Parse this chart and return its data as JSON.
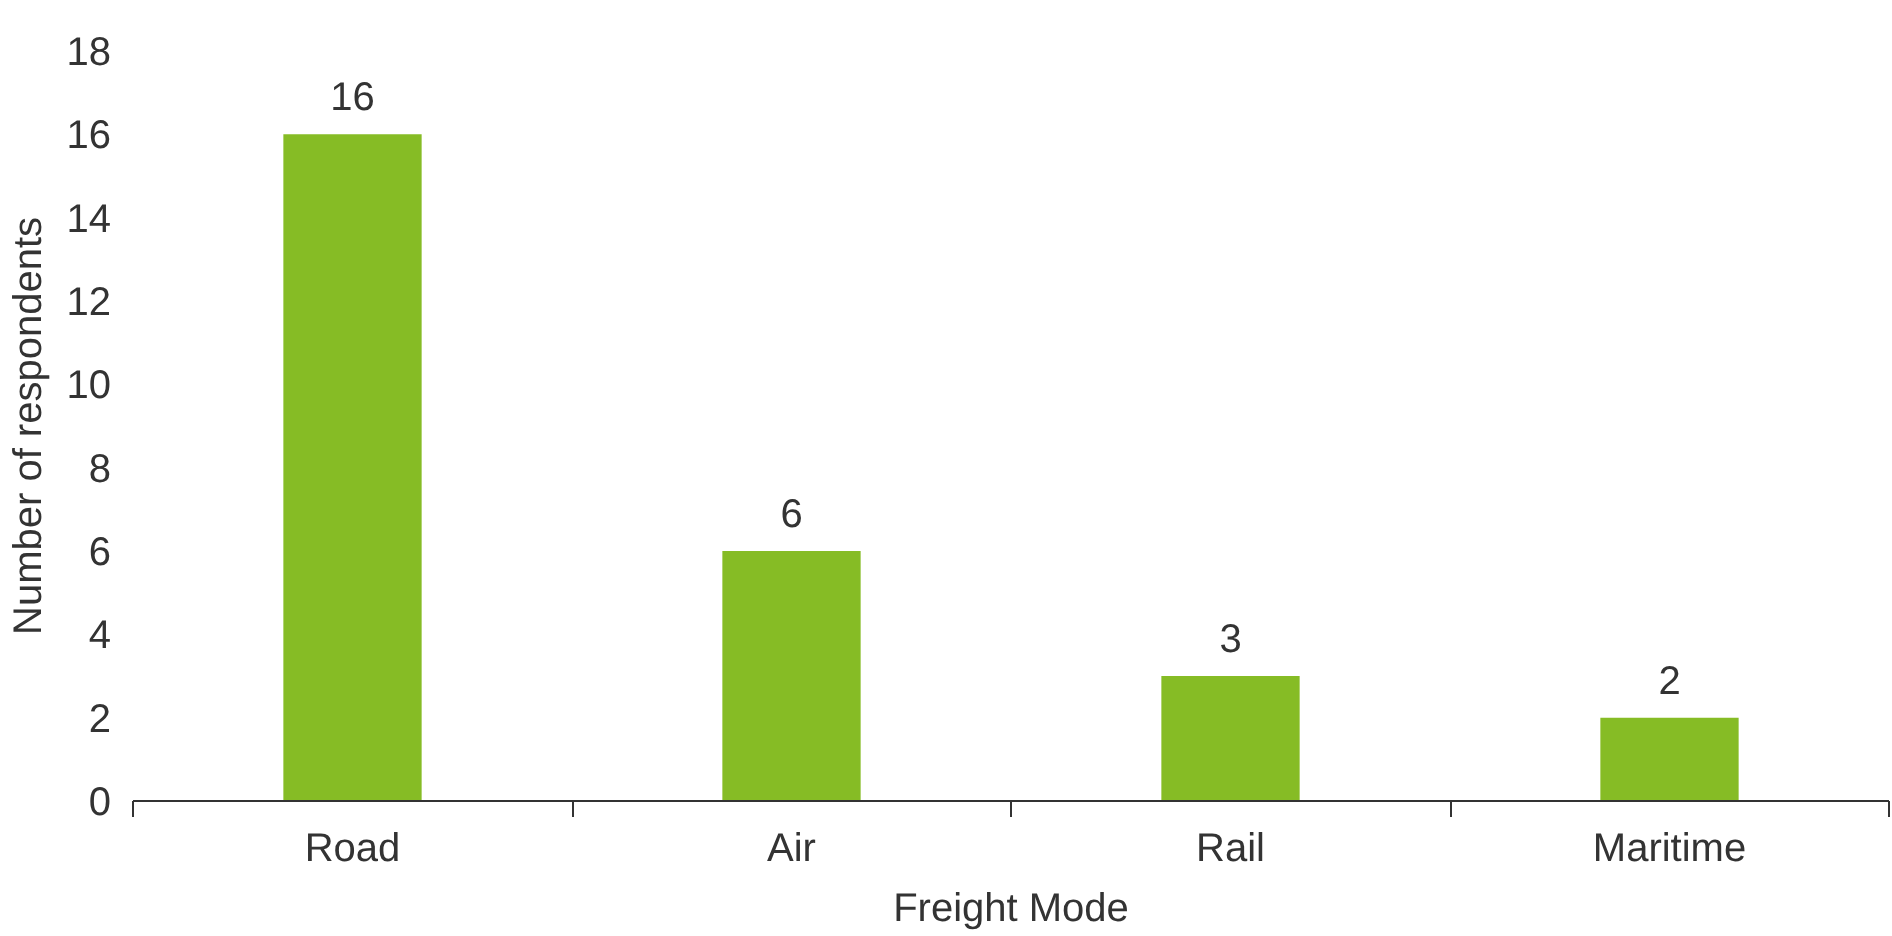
{
  "chart_data": {
    "type": "bar",
    "categories": [
      "Road",
      "Air",
      "Rail",
      "Maritime"
    ],
    "values": [
      16,
      6,
      3,
      2
    ],
    "color": "#86bc25",
    "xlabel": "Freight Mode",
    "ylabel": "Number of respondents",
    "ylim": [
      0,
      18
    ],
    "yticks": [
      0,
      2,
      4,
      6,
      8,
      10,
      12,
      14,
      16,
      18
    ],
    "data_labels": true,
    "grid": false
  }
}
